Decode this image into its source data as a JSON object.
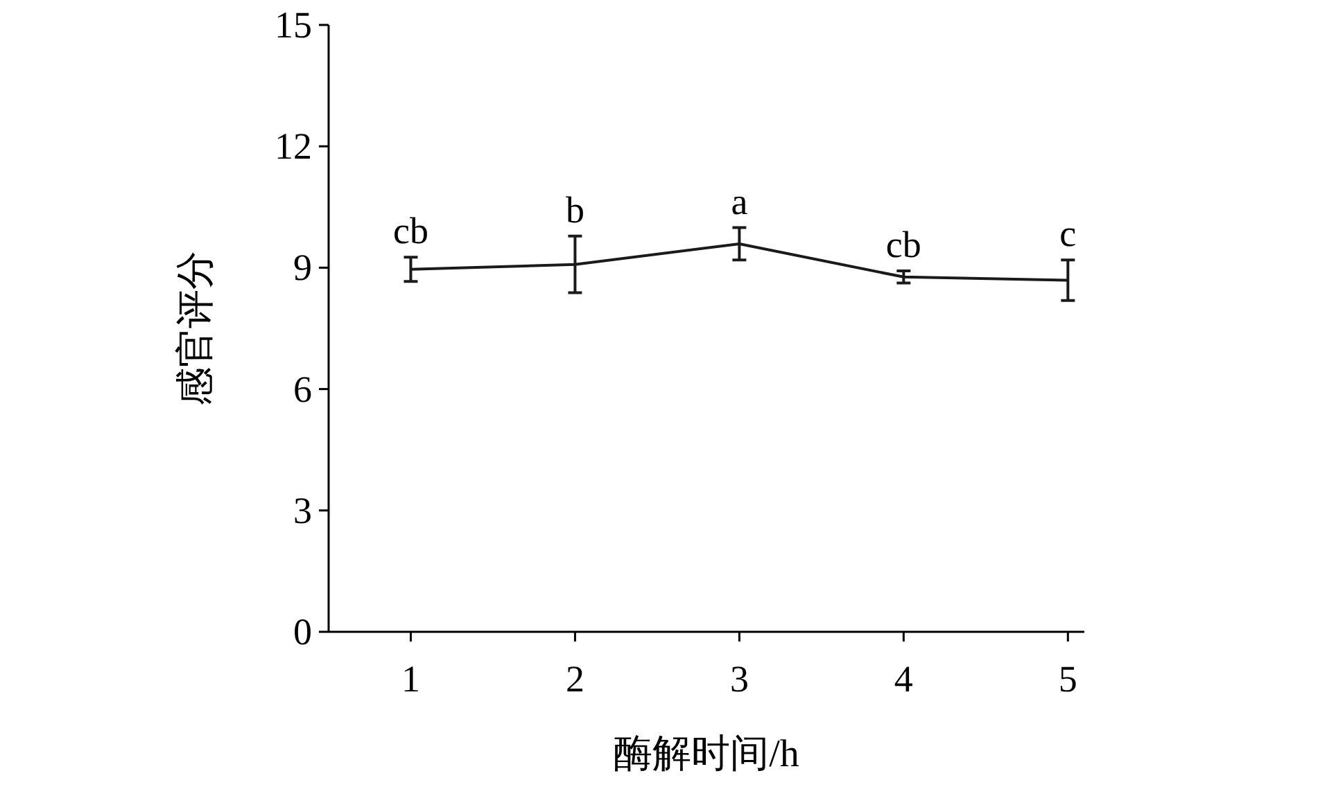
{
  "chart_data": {
    "type": "line",
    "xlabel": "酶解时间/h",
    "ylabel": "感官评分",
    "x": [
      1,
      2,
      3,
      4,
      5
    ],
    "series": [
      {
        "color": "#1a1a1a",
        "values": [
          8.96,
          9.08,
          9.59,
          8.77,
          8.69
        ],
        "errors": [
          0.3,
          0.7,
          0.4,
          0.15,
          0.5
        ]
      }
    ],
    "xlim": [
      0.5,
      5.1
    ],
    "xticks": [
      1,
      2,
      3,
      4,
      5
    ],
    "ylim": [
      0,
      15
    ],
    "yticks": [
      0,
      3,
      6,
      9,
      12,
      15
    ],
    "marker": "none",
    "line_style": "solid",
    "grid": false,
    "annotations": [
      {
        "text": "cb",
        "x": 1,
        "y": 8.96
      },
      {
        "text": "b",
        "x": 2,
        "y": 9.08
      },
      {
        "text": "a",
        "x": 3,
        "y": 9.59
      },
      {
        "text": "cb",
        "x": 4,
        "y": 8.77
      },
      {
        "text": "c",
        "x": 5,
        "y": 8.69
      }
    ]
  }
}
